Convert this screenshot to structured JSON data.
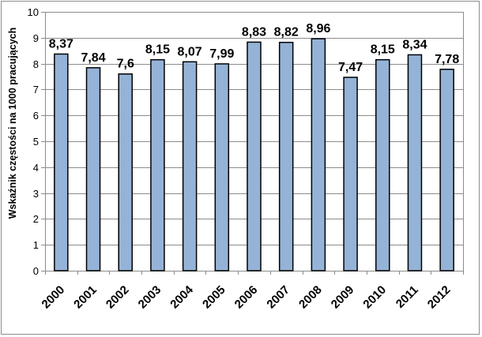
{
  "chart_data": {
    "type": "bar",
    "categories": [
      "2000",
      "2001",
      "2002",
      "2003",
      "2004",
      "2005",
      "2006",
      "2007",
      "2008",
      "2009",
      "2010",
      "2011",
      "2012"
    ],
    "values": [
      8.37,
      7.84,
      7.6,
      8.15,
      8.07,
      7.99,
      8.83,
      8.82,
      8.96,
      7.47,
      8.15,
      8.34,
      7.78
    ],
    "data_labels": [
      "8,37",
      "7,84",
      "7,6",
      "8,15",
      "8,07",
      "7,99",
      "8,83",
      "8,82",
      "8,96",
      "7,47",
      "8,15",
      "8,34",
      "7,78"
    ],
    "title": "",
    "xlabel": "",
    "ylabel": "Wskaźnik częstości na 1000 pracujących",
    "ylim": [
      0,
      10
    ],
    "yticks": [
      "0",
      "1",
      "2",
      "3",
      "4",
      "5",
      "6",
      "7",
      "8",
      "9",
      "10"
    ],
    "grid": true,
    "legend": "none",
    "colors": {
      "bar_fill": "#95b3d7",
      "bar_stroke": "#000000",
      "grid": "#8c8c8c"
    }
  }
}
